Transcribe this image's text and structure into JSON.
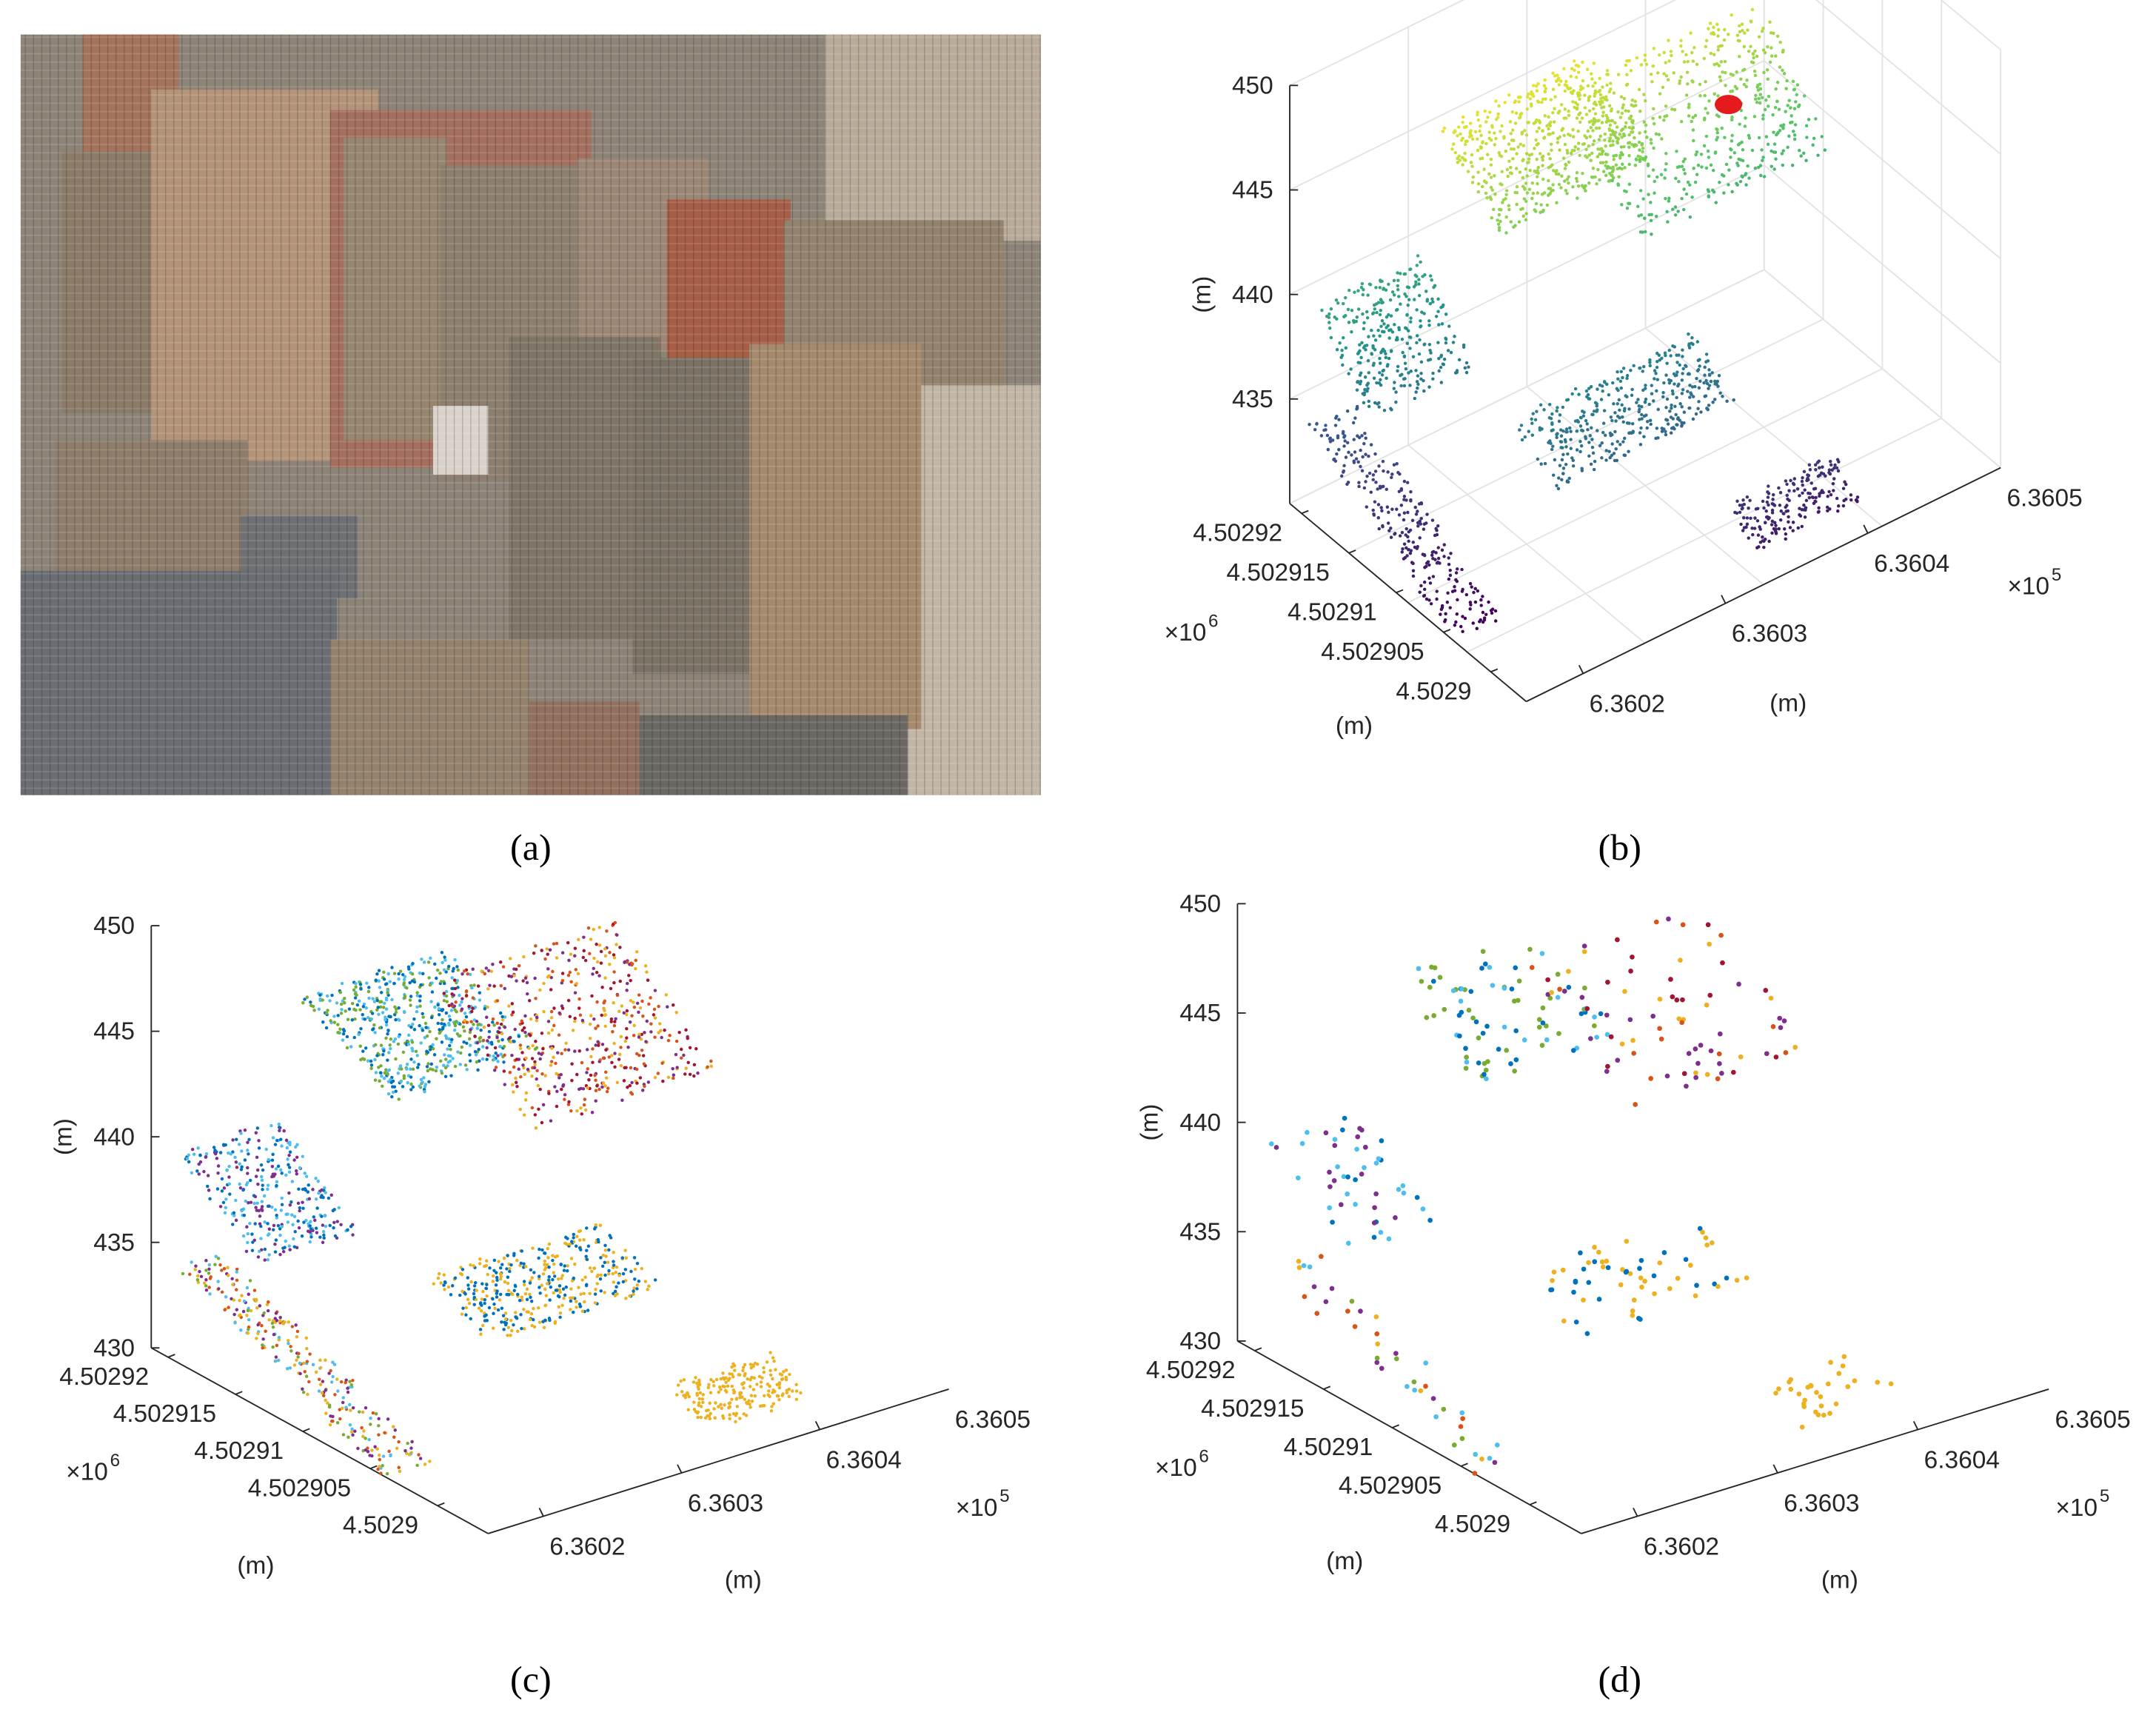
{
  "panels": [
    {
      "label": "(a)"
    },
    {
      "label": "(b)",
      "z_ticks": [
        "450",
        "445",
        "440",
        "435"
      ],
      "z_label": "(m)",
      "y_ticks": [
        "4.50292",
        "4.502915",
        "4.50291",
        "4.502905",
        "4.5029"
      ],
      "y_multiplier": {
        "text": "×10",
        "exponent": "6"
      },
      "y_label": "(m)",
      "x_ticks": [
        "6.3602",
        "6.3603",
        "6.3604",
        "6.3605"
      ],
      "x_multiplier": {
        "text": "×10",
        "exponent": "5"
      },
      "x_label": "(m)"
    },
    {
      "label": "(c)",
      "z_ticks": [
        "450",
        "445",
        "440",
        "435",
        "430"
      ],
      "z_label": "(m)",
      "y_ticks": [
        "4.50292",
        "4.502915",
        "4.50291",
        "4.502905",
        "4.5029"
      ],
      "y_multiplier": {
        "text": "×10",
        "exponent": "6"
      },
      "y_label": "(m)",
      "x_ticks": [
        "6.3602",
        "6.3603",
        "6.3604",
        "6.3605"
      ],
      "x_multiplier": {
        "text": "×10",
        "exponent": "5"
      },
      "x_label": "(m)"
    },
    {
      "label": "(d)",
      "z_ticks": [
        "450",
        "445",
        "440",
        "435",
        "430"
      ],
      "z_label": "(m)",
      "y_ticks": [
        "4.50292",
        "4.502915",
        "4.50291",
        "4.502905",
        "4.5029"
      ],
      "y_multiplier": {
        "text": "×10",
        "exponent": "6"
      },
      "y_label": "(m)",
      "x_ticks": [
        "6.3602",
        "6.3603",
        "6.3604",
        "6.3605"
      ],
      "x_multiplier": {
        "text": "×10",
        "exponent": "5"
      },
      "x_label": "(m)"
    }
  ]
}
